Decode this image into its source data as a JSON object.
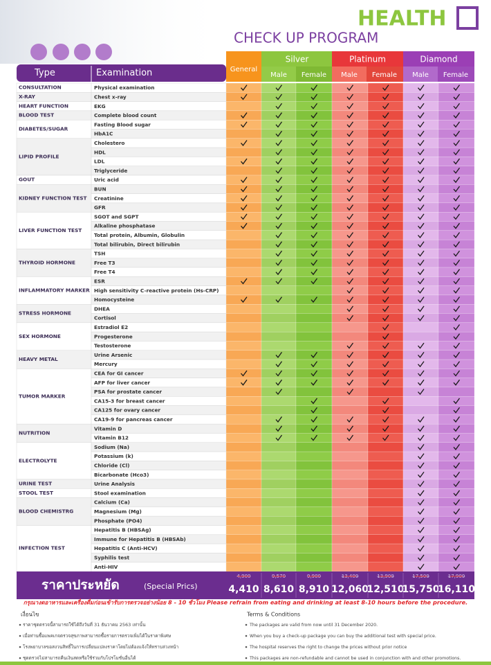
{
  "header": {
    "title": "HEALTH",
    "subtitle": "CHECK UP PROGRAM"
  },
  "table": {
    "columns": {
      "type": "Type",
      "examination": "Examination",
      "general": "General",
      "silver": "Silver",
      "platinum": "Platinum",
      "diamond": "Diamond",
      "male": "Male",
      "female": "Female"
    },
    "groups": [
      {
        "type": "CONSULTATION",
        "items": [
          {
            "exam": "Physical examination",
            "checks": [
              true,
              true,
              true,
              true,
              true,
              true,
              true
            ]
          }
        ]
      },
      {
        "type": "X-RAY",
        "items": [
          {
            "exam": "Chest x-ray",
            "checks": [
              true,
              true,
              true,
              true,
              true,
              true,
              true
            ]
          }
        ]
      },
      {
        "type": "HEART FUNCTION",
        "items": [
          {
            "exam": "EKG",
            "checks": [
              false,
              true,
              true,
              true,
              true,
              true,
              true
            ]
          }
        ]
      },
      {
        "type": "BLOOD TEST",
        "items": [
          {
            "exam": "Complete blood count",
            "checks": [
              true,
              true,
              true,
              true,
              true,
              true,
              true
            ]
          }
        ]
      },
      {
        "type": "DIABETES/SUGAR",
        "items": [
          {
            "exam": "Fasting Blood sugar",
            "checks": [
              true,
              true,
              true,
              true,
              true,
              true,
              true
            ]
          },
          {
            "exam": "HbA1C",
            "checks": [
              false,
              true,
              true,
              true,
              true,
              true,
              true
            ]
          }
        ]
      },
      {
        "type": "LIPID PROFILE",
        "items": [
          {
            "exam": "Cholestero",
            "checks": [
              true,
              true,
              true,
              true,
              true,
              true,
              true
            ]
          },
          {
            "exam": "HDL",
            "checks": [
              false,
              true,
              true,
              true,
              true,
              true,
              true
            ]
          },
          {
            "exam": "LDL",
            "checks": [
              true,
              true,
              true,
              true,
              true,
              true,
              true
            ]
          },
          {
            "exam": "Triglyceride",
            "checks": [
              false,
              true,
              true,
              true,
              true,
              true,
              true
            ]
          }
        ]
      },
      {
        "type": "GOUT",
        "items": [
          {
            "exam": "Uric acid",
            "checks": [
              true,
              true,
              true,
              true,
              true,
              true,
              true
            ]
          }
        ]
      },
      {
        "type": "KIDNEY FUNCTION TEST",
        "items": [
          {
            "exam": "BUN",
            "checks": [
              true,
              true,
              true,
              true,
              true,
              true,
              true
            ]
          },
          {
            "exam": "Creatinine",
            "checks": [
              true,
              true,
              true,
              true,
              true,
              true,
              true
            ]
          },
          {
            "exam": "GFR",
            "checks": [
              true,
              true,
              true,
              true,
              true,
              true,
              true
            ]
          }
        ]
      },
      {
        "type": "LIVER FUNCTION TEST",
        "items": [
          {
            "exam": "SGOT and SGPT",
            "checks": [
              true,
              true,
              true,
              true,
              true,
              true,
              true
            ]
          },
          {
            "exam": "Alkaline phosphatase",
            "checks": [
              true,
              true,
              true,
              true,
              true,
              true,
              true
            ]
          },
          {
            "exam": "Total protein, Albumin, Globulin",
            "checks": [
              false,
              true,
              true,
              true,
              true,
              true,
              true
            ]
          },
          {
            "exam": "Total bilirubin, Direct bilirubin",
            "checks": [
              false,
              true,
              true,
              true,
              true,
              true,
              true
            ]
          }
        ]
      },
      {
        "type": "THYROID HORMONE",
        "items": [
          {
            "exam": "TSH",
            "checks": [
              false,
              true,
              true,
              true,
              true,
              true,
              true
            ]
          },
          {
            "exam": "Free T3",
            "checks": [
              false,
              true,
              true,
              true,
              true,
              true,
              true
            ]
          },
          {
            "exam": "Free T4",
            "checks": [
              false,
              true,
              true,
              true,
              true,
              true,
              true
            ]
          }
        ]
      },
      {
        "type": "INFLAMMATORY MARKER",
        "items": [
          {
            "exam": "ESR",
            "checks": [
              true,
              true,
              true,
              true,
              true,
              true,
              true
            ]
          },
          {
            "exam": "High sensitivity C-reactive protein (Hs-CRP)",
            "checks": [
              false,
              false,
              false,
              true,
              true,
              true,
              true
            ]
          },
          {
            "exam": "Homocysteine",
            "checks": [
              true,
              true,
              true,
              true,
              true,
              true,
              true
            ]
          }
        ]
      },
      {
        "type": "STRESS HORMONE",
        "items": [
          {
            "exam": "DHEA",
            "checks": [
              false,
              false,
              false,
              true,
              true,
              true,
              true
            ]
          },
          {
            "exam": "Cortisol",
            "checks": [
              false,
              false,
              false,
              true,
              true,
              true,
              true
            ]
          }
        ]
      },
      {
        "type": "SEX HORMONE",
        "items": [
          {
            "exam": "Estradiol E2",
            "checks": [
              false,
              false,
              false,
              false,
              true,
              false,
              true
            ]
          },
          {
            "exam": "Progesterone",
            "checks": [
              false,
              false,
              false,
              false,
              true,
              false,
              true
            ]
          },
          {
            "exam": "Testosterone",
            "checks": [
              false,
              false,
              false,
              true,
              true,
              true,
              true
            ]
          }
        ]
      },
      {
        "type": "HEAVY METAL",
        "items": [
          {
            "exam": "Urine Arsenic",
            "checks": [
              false,
              true,
              true,
              true,
              true,
              true,
              true
            ]
          },
          {
            "exam": "Mercury",
            "checks": [
              false,
              true,
              true,
              true,
              true,
              true,
              true
            ]
          }
        ]
      },
      {
        "type": "TUMOR MARKER",
        "items": [
          {
            "exam": "CEA for GI cancer",
            "checks": [
              true,
              true,
              true,
              true,
              true,
              true,
              true
            ]
          },
          {
            "exam": "AFP for liver cancer",
            "checks": [
              true,
              true,
              true,
              true,
              true,
              true,
              true
            ]
          },
          {
            "exam": "PSA for prostate cancer",
            "checks": [
              false,
              true,
              false,
              true,
              false,
              true,
              false
            ]
          },
          {
            "exam": "CA15-3 for breast cancer",
            "checks": [
              false,
              false,
              true,
              false,
              true,
              false,
              true
            ]
          },
          {
            "exam": "CA125 for ovary cancer",
            "checks": [
              false,
              false,
              true,
              false,
              true,
              false,
              true
            ]
          },
          {
            "exam": "CA19-9 for pancreas cancer",
            "checks": [
              false,
              true,
              true,
              true,
              true,
              true,
              true
            ]
          }
        ]
      },
      {
        "type": "NUTRITION",
        "items": [
          {
            "exam": "Vitamin D",
            "checks": [
              false,
              true,
              true,
              true,
              true,
              true,
              true
            ]
          },
          {
            "exam": "Vitamin B12",
            "checks": [
              false,
              true,
              true,
              true,
              true,
              true,
              true
            ]
          }
        ]
      },
      {
        "type": "ELECTROLYTE",
        "items": [
          {
            "exam": "Sodium (Na)",
            "checks": [
              false,
              false,
              false,
              false,
              false,
              true,
              true
            ]
          },
          {
            "exam": "Potassium (k)",
            "checks": [
              false,
              false,
              false,
              false,
              false,
              true,
              true
            ]
          },
          {
            "exam": "Chloride (Cl)",
            "checks": [
              false,
              false,
              false,
              false,
              false,
              true,
              true
            ]
          },
          {
            "exam": "Bicarbonate (Hco3)",
            "checks": [
              false,
              false,
              false,
              false,
              false,
              true,
              true
            ]
          }
        ]
      },
      {
        "type": "URINE TEST",
        "items": [
          {
            "exam": "Urine Analysis",
            "checks": [
              false,
              false,
              false,
              false,
              false,
              true,
              true
            ]
          }
        ]
      },
      {
        "type": "STOOL TEST",
        "items": [
          {
            "exam": "Stool examination",
            "checks": [
              false,
              false,
              false,
              false,
              false,
              true,
              true
            ]
          }
        ]
      },
      {
        "type": "BLOOD CHEMISTRG",
        "items": [
          {
            "exam": "Calcium (Ca)",
            "checks": [
              false,
              false,
              false,
              false,
              false,
              true,
              true
            ]
          },
          {
            "exam": "Magnesium (Mg)",
            "checks": [
              false,
              false,
              false,
              false,
              false,
              true,
              true
            ]
          },
          {
            "exam": "Phosphate (PO4)",
            "checks": [
              false,
              false,
              false,
              false,
              false,
              true,
              true
            ]
          }
        ]
      },
      {
        "type": "INFECTION TEST",
        "items": [
          {
            "exam": "Hepatitis B (HBSAg)",
            "checks": [
              false,
              false,
              false,
              false,
              false,
              true,
              true
            ]
          },
          {
            "exam": "Immune for Hepatitis B (HBSAb)",
            "checks": [
              false,
              false,
              false,
              false,
              false,
              true,
              true
            ]
          },
          {
            "exam": "Hepatitis C (Anti-HCV)",
            "checks": [
              false,
              false,
              false,
              false,
              false,
              true,
              true
            ]
          },
          {
            "exam": "Syphilis test",
            "checks": [
              false,
              false,
              false,
              false,
              false,
              true,
              true
            ]
          },
          {
            "exam": "Anti-HIV",
            "checks": [
              false,
              false,
              false,
              false,
              false,
              true,
              true
            ]
          }
        ]
      }
    ],
    "price_label": "ราคาประหยัด",
    "price_label_en": "(Special Prics)",
    "old_prices": [
      "4,900",
      "9,570",
      "9,900",
      "13,400",
      "13,900",
      "17,500",
      "17,900"
    ],
    "prices": [
      "4,410",
      "8,610",
      "8,910",
      "12,060",
      "12,510",
      "15,750",
      "16,110"
    ]
  },
  "notice": "กรุณางดอาหารและเครื่องดื่มก่อนเข้ารับการตรวจอย่างน้อย 8 - 10 ชั่วโมง Please refrain from eating and drinking at least 8-10 hours before the procedure.",
  "conditions": {
    "thai_title": "เงื่อนไข",
    "thai": [
      "ราคาชุดตรวจนี้สามารถใช้ได้ถึงวันที่ 31 ธันวาคม 2563 เท่านั้น",
      "เมื่อท่านซื้อแพคเกจตรวจสุขภาพสามารถซื้อรายการตรวจเพิ่มได้ในราคาพิเศษ",
      "โรงพยาบาลขอสงวนสิทธิ์ในการเปลี่ยนแปลงราคาโดยไม่ต้องแจ้งให้ทราบล่วงหน้า",
      "ชุดตรวจไม่สามารถคืนเงินสดหรือใช้ร่วมกับโปรโมชั่นอื่นได้"
    ],
    "en_title": "Terms & Conditions",
    "en": [
      "The packages are valid from now until 31 December 2020.",
      "When you buy a check-up package you can buy the additional test with special price.",
      "The hospital reserves the right to change the prices without prior notice",
      "This packages are non-refundable and cannot be used in conjunction with and other promotions."
    ]
  }
}
